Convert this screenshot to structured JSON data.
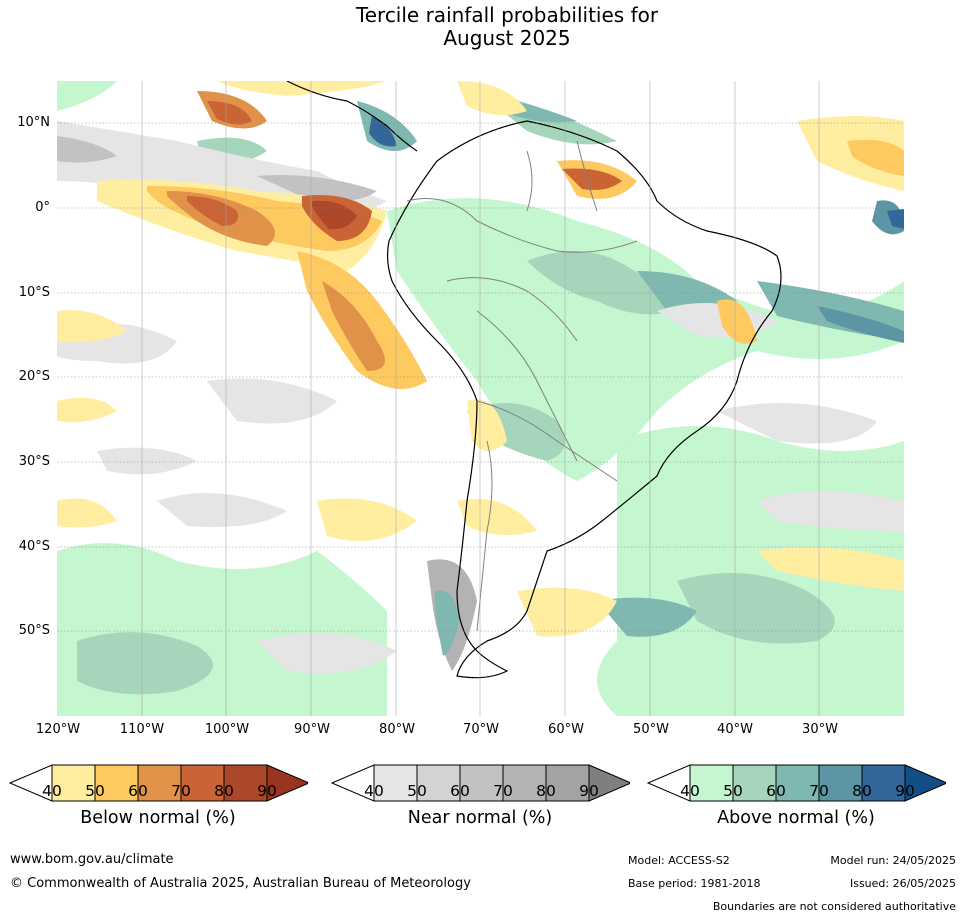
{
  "title": {
    "line1": "Tercile rainfall probabilities for",
    "line2": "August 2025"
  },
  "map": {
    "lat_labels": [
      "10°N",
      "0°",
      "10°S",
      "20°S",
      "30°S",
      "40°S",
      "50°S"
    ],
    "lon_labels": [
      "120°W",
      "110°W",
      "100°W",
      "90°W",
      "80°W",
      "70°W",
      "60°W",
      "50°W",
      "40°W",
      "30°W"
    ]
  },
  "legend": {
    "below": {
      "title": "Below normal (%)",
      "ticks": [
        "40",
        "50",
        "60",
        "70",
        "80",
        "90"
      ],
      "colors": [
        "#ffeda0",
        "#fec95f",
        "#e09248",
        "#ca6434",
        "#ac4729",
        "#983420"
      ]
    },
    "near": {
      "title": "Near normal (%)",
      "ticks": [
        "40",
        "50",
        "60",
        "70",
        "80",
        "90"
      ],
      "colors": [
        "#e5e5e5",
        "#d3d3d3",
        "#c2c2c2",
        "#b3b3b3",
        "#a3a3a3",
        "#7f7f7f"
      ]
    },
    "above": {
      "title": "Above normal (%)",
      "ticks": [
        "40",
        "50",
        "60",
        "70",
        "80",
        "90"
      ],
      "colors": [
        "#c4f6cf",
        "#a5d6bb",
        "#7fb7b1",
        "#5c96a4",
        "#336699",
        "#124f86"
      ]
    }
  },
  "footer": {
    "website": "www.bom.gov.au/climate",
    "copyright": "© Commonwealth of Australia 2025, Australian Bureau of Meteorology",
    "model": "Model: ACCESS-S2",
    "model_run": "Model run: 24/05/2025",
    "base_period": "Base period: 1981-2018",
    "issued": "Issued: 26/05/2025",
    "disclaimer": "Boundaries are not considered authoritative"
  }
}
